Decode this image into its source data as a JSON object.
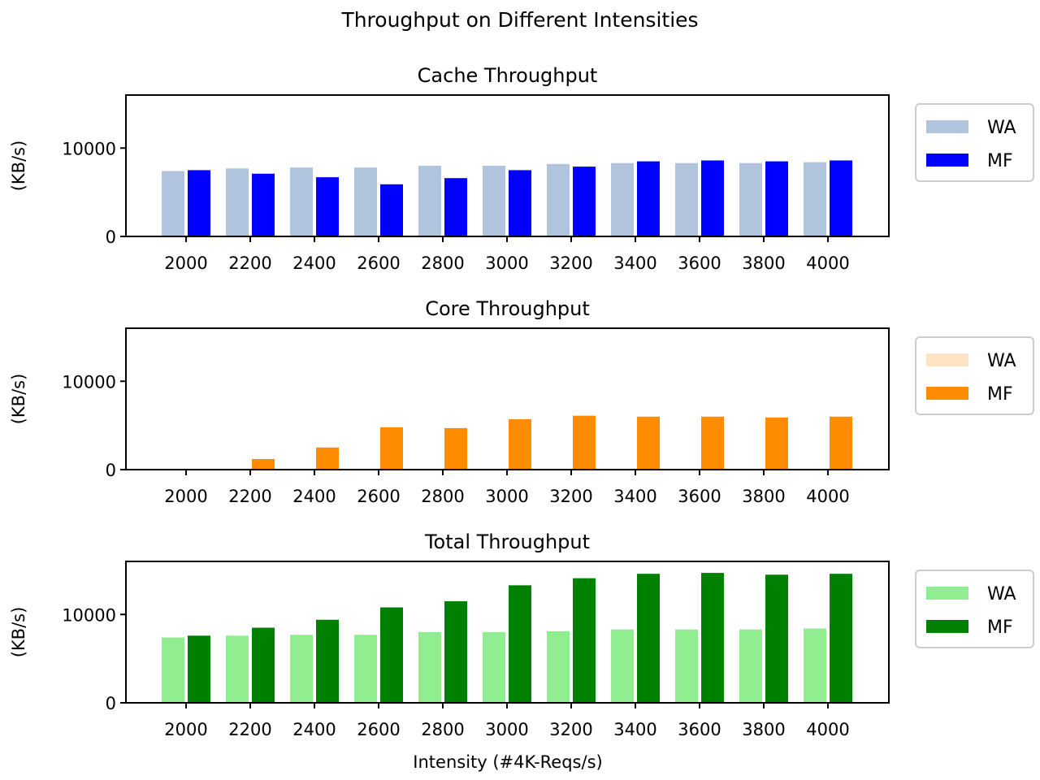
{
  "figure": {
    "suptitle": "Throughput on Different Intensities",
    "xlabel": "Intensity (#4K-Reqs/s)"
  },
  "chart_data": [
    {
      "type": "bar",
      "title": "Cache Throughput",
      "ylabel": "(KB/s)",
      "xlabel": "",
      "categories": [
        "2000",
        "2200",
        "2400",
        "2600",
        "2800",
        "3000",
        "3200",
        "3400",
        "3600",
        "3800",
        "4000"
      ],
      "ylim": [
        0,
        16000
      ],
      "yticks": [
        0,
        10000
      ],
      "legend_position": "outside-right",
      "series": [
        {
          "name": "WA",
          "color": "#b0c4de",
          "values": [
            7400,
            7700,
            7800,
            7800,
            8000,
            8000,
            8200,
            8300,
            8300,
            8300,
            8400
          ]
        },
        {
          "name": "MF",
          "color": "#0000ff",
          "values": [
            7500,
            7100,
            6700,
            5900,
            6600,
            7500,
            7900,
            8500,
            8600,
            8500,
            8600
          ]
        }
      ]
    },
    {
      "type": "bar",
      "title": "Core Throughput",
      "ylabel": "(KB/s)",
      "xlabel": "",
      "categories": [
        "2000",
        "2200",
        "2400",
        "2600",
        "2800",
        "3000",
        "3200",
        "3400",
        "3600",
        "3800",
        "4000"
      ],
      "ylim": [
        0,
        16000
      ],
      "yticks": [
        0,
        10000
      ],
      "legend_position": "outside-right",
      "series": [
        {
          "name": "WA",
          "color": "#ffe4c4",
          "values": [
            0,
            0,
            0,
            0,
            0,
            0,
            0,
            0,
            0,
            0,
            0
          ]
        },
        {
          "name": "MF",
          "color": "#ff8c00",
          "values": [
            0,
            1200,
            2500,
            4800,
            4700,
            5700,
            6100,
            6000,
            6000,
            5900,
            6000
          ]
        }
      ]
    },
    {
      "type": "bar",
      "title": "Total Throughput",
      "ylabel": "(KB/s)",
      "xlabel": "Intensity (#4K-Reqs/s)",
      "categories": [
        "2000",
        "2200",
        "2400",
        "2600",
        "2800",
        "3000",
        "3200",
        "3400",
        "3600",
        "3800",
        "4000"
      ],
      "ylim": [
        0,
        16000
      ],
      "yticks": [
        0,
        10000
      ],
      "legend_position": "outside-right",
      "series": [
        {
          "name": "WA",
          "color": "#90ee90",
          "values": [
            7400,
            7600,
            7700,
            7700,
            8000,
            8000,
            8100,
            8300,
            8300,
            8300,
            8400
          ]
        },
        {
          "name": "MF",
          "color": "#008000",
          "values": [
            7600,
            8500,
            9400,
            10800,
            11500,
            13300,
            14100,
            14600,
            14700,
            14500,
            14600
          ]
        }
      ]
    }
  ]
}
